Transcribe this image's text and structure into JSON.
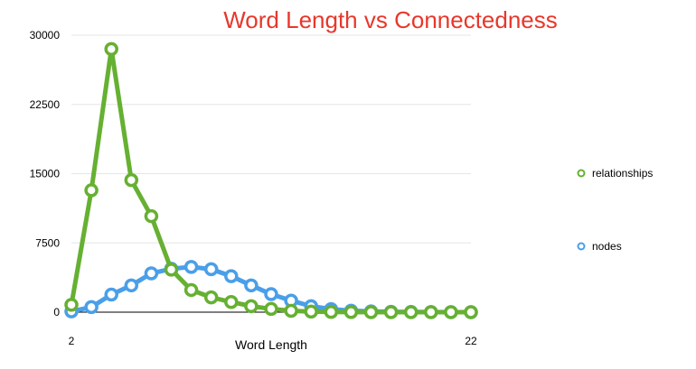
{
  "chart_data": {
    "type": "line",
    "title": "Word Length vs Connectedness",
    "xlabel": "Word Length",
    "ylabel": "",
    "x": [
      2,
      3,
      4,
      5,
      6,
      7,
      8,
      9,
      10,
      11,
      12,
      13,
      14,
      15,
      16,
      17,
      18,
      19,
      20,
      21,
      22
    ],
    "x_tick_labels": [
      "2",
      "22"
    ],
    "y_ticks": [
      "0",
      "7500",
      "15000",
      "22500",
      "30000"
    ],
    "ylim": [
      0,
      30000
    ],
    "grid": true,
    "legend_position": "right",
    "series": [
      {
        "name": "relationships",
        "color": "#66b032",
        "values": [
          800,
          13200,
          28500,
          14300,
          10400,
          4600,
          2400,
          1600,
          1100,
          650,
          350,
          150,
          60,
          20,
          8,
          4,
          2,
          1,
          1,
          1,
          0
        ]
      },
      {
        "name": "nodes",
        "color": "#4a9fe8",
        "values": [
          80,
          550,
          1900,
          2900,
          4200,
          4700,
          4900,
          4650,
          3900,
          2900,
          1950,
          1250,
          650,
          330,
          160,
          80,
          40,
          20,
          10,
          5,
          2
        ]
      }
    ],
    "title_color": "#e8372b"
  }
}
